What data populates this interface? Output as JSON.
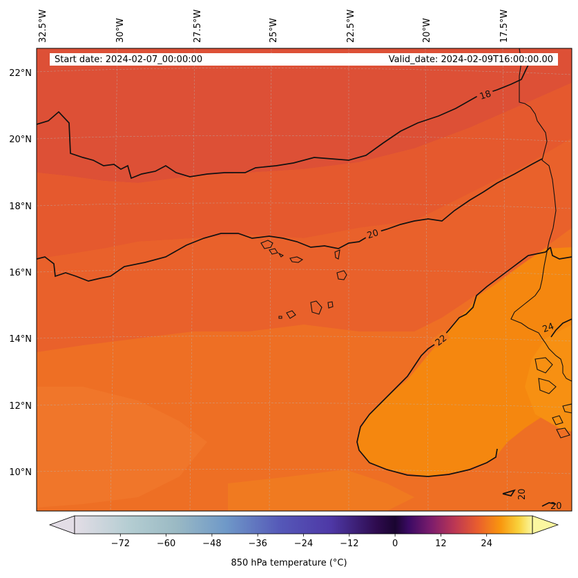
{
  "header": {
    "start_date": "Start date: 2024-02-07_00:00:00",
    "valid_date": "Valid_date: 2024-02-09T16:00:00.00"
  },
  "map": {
    "variable": "850 hPa temperature",
    "longitude_labels": [
      "32.5°W",
      "30°W",
      "27.5°W",
      "25°W",
      "22.5°W",
      "20°W",
      "17.5°W"
    ],
    "latitude_labels": [
      "22°N",
      "20°N",
      "18°N",
      "16°N",
      "14°N",
      "12°N",
      "10°N"
    ],
    "contour_labels": [
      "18",
      "20",
      "22",
      "24",
      "20",
      "20"
    ],
    "fill_colors": {
      "north": "#dd5036",
      "mid": "#e8612b",
      "south": "#ee6f24",
      "warm_core": "#f5870f"
    }
  },
  "colorbar": {
    "label": "850 hPa temperature ($^\\circ$C)",
    "label_display": "850 hPa temperature (°C)",
    "min": -84,
    "max": 36,
    "extend": "both",
    "ticks": [
      "-72",
      "-60",
      "-48",
      "-36",
      "-24",
      "-12",
      "0",
      "12",
      "24"
    ],
    "tick_values": [
      -72,
      -60,
      -48,
      -36,
      -24,
      -12,
      0,
      12,
      24
    ],
    "colormap": "inferno-like with light grey-blue negatives"
  }
}
